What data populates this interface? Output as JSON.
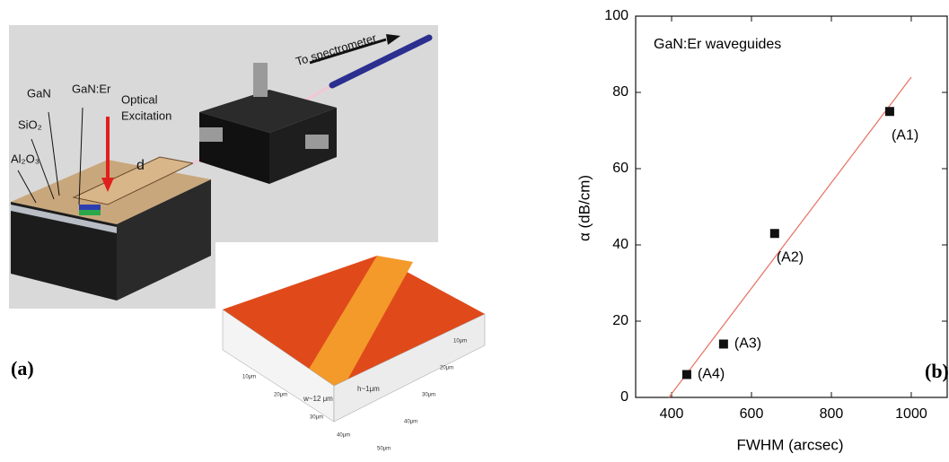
{
  "panel_a": {
    "to_spectrometer": "To spectrometer",
    "gan": "GaN",
    "gan_er": "GaN:Er",
    "optical": "Optical",
    "excitation": "Excitation",
    "sio2": "SiO₂",
    "al2o3": "Al₂O₃",
    "d": "d",
    "panel_label": "(a)",
    "afm": {
      "height": "h~1μm",
      "width": "w~12 μm",
      "x_ticks": [
        "10μm",
        "20μm",
        "30μm",
        "40μm",
        "50μm"
      ],
      "y_ticks": [
        "10μm",
        "20μm",
        "30μm",
        "40μm"
      ]
    }
  },
  "chart_data": {
    "type": "scatter",
    "annotation": "GaN:Er waveguides",
    "panel_label": "(b)",
    "xlabel": "FWHM (arcsec)",
    "ylabel": "α (dB/cm)",
    "xlim": [
      310,
      1090
    ],
    "ylim": [
      0,
      100
    ],
    "xticks": [
      400,
      600,
      800,
      1000
    ],
    "yticks": [
      0,
      20,
      40,
      60,
      80,
      100
    ],
    "series": [
      {
        "x": [
          946,
          658,
          530,
          438
        ],
        "values": [
          75,
          43,
          14,
          6
        ],
        "point_labels": [
          "(A1)",
          "(A2)",
          "(A3)",
          "(A4)"
        ],
        "color": "#111111"
      }
    ],
    "fit_line": {
      "x": [
        393,
        1000
      ],
      "values": [
        0,
        84
      ],
      "color": "#e8786a"
    }
  }
}
